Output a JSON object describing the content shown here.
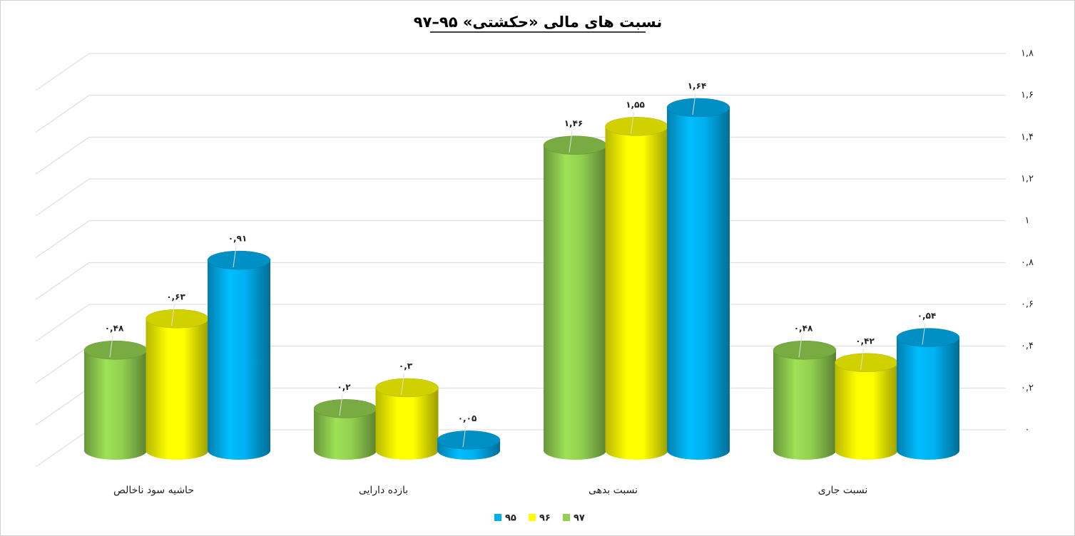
{
  "chart_data": {
    "type": "bar",
    "title": "نسبت های مالی «حکشتی» ۹۵–۹۷",
    "categories": [
      "حاشیه سود ناخالص",
      "بازده دارایی",
      "نسبت بدهی",
      "نسبت جاری"
    ],
    "series": [
      {
        "name": "۹۵",
        "color": "#00b0f0",
        "values": [
          0.91,
          0.05,
          1.64,
          0.54
        ],
        "value_labels": [
          "۰,۹۱",
          "۰,۰۵",
          "۱,۶۴",
          "۰,۵۴"
        ]
      },
      {
        "name": "۹۶",
        "color": "#ffff00",
        "values": [
          0.63,
          0.3,
          1.55,
          0.42
        ],
        "value_labels": [
          "۰,۶۳",
          "۰,۳",
          "۱,۵۵",
          "۰,۴۲"
        ]
      },
      {
        "name": "۹۷",
        "color": "#92d050",
        "values": [
          0.48,
          0.2,
          1.46,
          0.48
        ],
        "value_labels": [
          "۰,۴۸",
          "۰,۲",
          "۱,۴۶",
          "۰,۴۸"
        ]
      }
    ],
    "ylim": [
      0,
      1.8
    ],
    "yticks": [
      {
        "value": 0,
        "label": "۰"
      },
      {
        "value": 0.2,
        "label": "۰,۲"
      },
      {
        "value": 0.4,
        "label": "۰,۴"
      },
      {
        "value": 0.6,
        "label": "۰,۶"
      },
      {
        "value": 0.8,
        "label": "۰,۸"
      },
      {
        "value": 1,
        "label": "۱"
      },
      {
        "value": 1.2,
        "label": "۱,۲"
      },
      {
        "value": 1.4,
        "label": "۱,۴"
      },
      {
        "value": 1.6,
        "label": "۱,۶"
      },
      {
        "value": 1.8,
        "label": "۱,۸"
      }
    ],
    "grid": true,
    "legend": "bottom"
  }
}
